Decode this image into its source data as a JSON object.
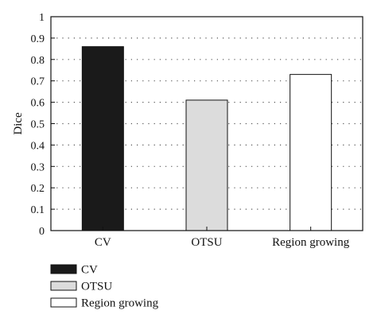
{
  "chart_data": {
    "type": "bar",
    "categories": [
      "CV",
      "OTSU",
      "Region growing"
    ],
    "values": [
      0.86,
      0.61,
      0.73
    ],
    "colors": [
      "#1a1a1a",
      "#dcdcdc",
      "#ffffff"
    ],
    "title": "",
    "xlabel": "",
    "ylabel": "Dice",
    "ylim": [
      0,
      1
    ],
    "yticks": [
      0,
      0.1,
      0.2,
      0.3,
      0.4,
      0.5,
      0.6,
      0.7,
      0.8,
      0.9,
      1
    ],
    "ytick_labels": [
      "0",
      "0.1",
      "0.2",
      "0.3",
      "0.4",
      "0.5",
      "0.6",
      "0.7",
      "0.8",
      "0.9",
      "1"
    ],
    "grid": true,
    "legend": {
      "placement": "below",
      "entries": [
        "CV",
        "OTSU",
        "Region growing"
      ]
    }
  }
}
